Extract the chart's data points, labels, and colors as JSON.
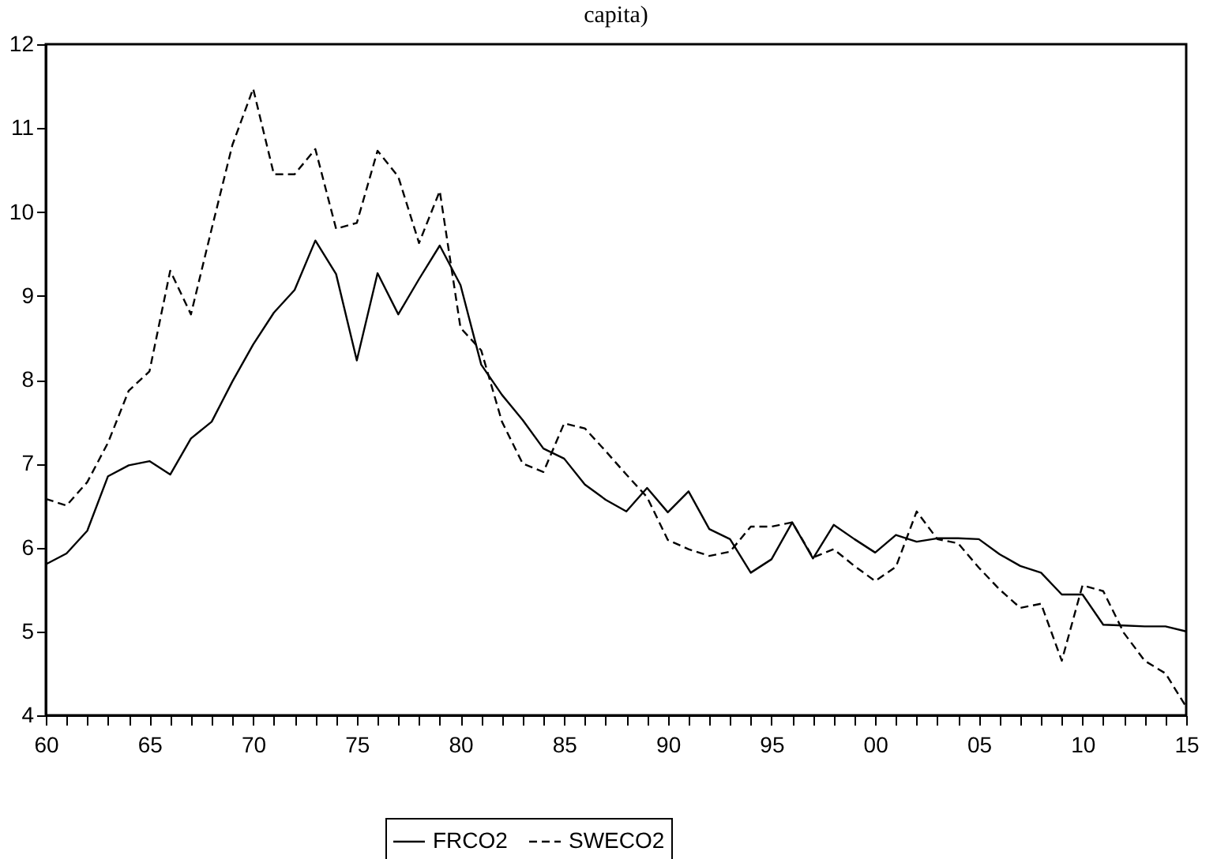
{
  "chart_data": {
    "type": "line",
    "title": "capita)",
    "x": [
      1960,
      1961,
      1962,
      1963,
      1964,
      1965,
      1966,
      1967,
      1968,
      1969,
      1970,
      1971,
      1972,
      1973,
      1974,
      1975,
      1976,
      1977,
      1978,
      1979,
      1980,
      1981,
      1982,
      1983,
      1984,
      1985,
      1986,
      1987,
      1988,
      1989,
      1990,
      1991,
      1992,
      1993,
      1994,
      1995,
      1996,
      1997,
      1998,
      1999,
      2000,
      2001,
      2002,
      2003,
      2004,
      2005,
      2006,
      2007,
      2008,
      2009,
      2010,
      2011,
      2012,
      2013,
      2014,
      2015
    ],
    "series": [
      {
        "name": "FRCO2",
        "color": "#000000",
        "line_style": "solid",
        "values": [
          5.8,
          5.93,
          6.2,
          6.85,
          6.98,
          7.03,
          6.87,
          7.3,
          7.5,
          7.98,
          8.42,
          8.8,
          9.07,
          9.66,
          9.26,
          8.23,
          9.27,
          8.78,
          9.2,
          9.6,
          9.13,
          8.18,
          7.82,
          7.52,
          7.18,
          7.06,
          6.75,
          6.57,
          6.43,
          6.71,
          6.42,
          6.67,
          6.22,
          6.1,
          5.7,
          5.86,
          6.3,
          5.87,
          6.27,
          6.1,
          5.94,
          6.15,
          6.07,
          6.11,
          6.11,
          6.1,
          5.92,
          5.78,
          5.7,
          5.44,
          5.44,
          5.08,
          5.07,
          5.06,
          5.06,
          5.0
        ]
      },
      {
        "name": "SWECO2",
        "color": "#000000",
        "line_style": "dashed",
        "values": [
          6.58,
          6.5,
          6.78,
          7.25,
          7.87,
          8.1,
          9.3,
          8.78,
          9.8,
          10.8,
          11.47,
          10.45,
          10.45,
          10.75,
          9.8,
          9.87,
          10.73,
          10.42,
          9.63,
          10.25,
          8.62,
          8.35,
          7.5,
          7.0,
          6.9,
          7.48,
          7.42,
          7.15,
          6.87,
          6.6,
          6.09,
          5.98,
          5.9,
          5.95,
          6.25,
          6.25,
          6.3,
          5.88,
          5.98,
          5.78,
          5.6,
          5.77,
          6.43,
          6.1,
          6.05,
          5.76,
          5.5,
          5.28,
          5.33,
          4.65,
          5.55,
          5.48,
          4.98,
          4.65,
          4.5,
          4.1
        ]
      }
    ],
    "xlim": [
      1960,
      2015
    ],
    "xticks": [
      {
        "value": 1960,
        "label": "60"
      },
      {
        "value": 1961,
        "label": null
      },
      {
        "value": 1962,
        "label": null
      },
      {
        "value": 1963,
        "label": null
      },
      {
        "value": 1964,
        "label": null
      },
      {
        "value": 1965,
        "label": "65"
      },
      {
        "value": 1966,
        "label": null
      },
      {
        "value": 1967,
        "label": null
      },
      {
        "value": 1968,
        "label": null
      },
      {
        "value": 1969,
        "label": null
      },
      {
        "value": 1970,
        "label": "70"
      },
      {
        "value": 1971,
        "label": null
      },
      {
        "value": 1972,
        "label": null
      },
      {
        "value": 1973,
        "label": null
      },
      {
        "value": 1974,
        "label": null
      },
      {
        "value": 1975,
        "label": "75"
      },
      {
        "value": 1976,
        "label": null
      },
      {
        "value": 1977,
        "label": null
      },
      {
        "value": 1978,
        "label": null
      },
      {
        "value": 1979,
        "label": null
      },
      {
        "value": 1980,
        "label": "80"
      },
      {
        "value": 1981,
        "label": null
      },
      {
        "value": 1982,
        "label": null
      },
      {
        "value": 1983,
        "label": null
      },
      {
        "value": 1984,
        "label": null
      },
      {
        "value": 1985,
        "label": "85"
      },
      {
        "value": 1986,
        "label": null
      },
      {
        "value": 1987,
        "label": null
      },
      {
        "value": 1988,
        "label": null
      },
      {
        "value": 1989,
        "label": null
      },
      {
        "value": 1990,
        "label": "90"
      },
      {
        "value": 1991,
        "label": null
      },
      {
        "value": 1992,
        "label": null
      },
      {
        "value": 1993,
        "label": null
      },
      {
        "value": 1994,
        "label": null
      },
      {
        "value": 1995,
        "label": "95"
      },
      {
        "value": 1996,
        "label": null
      },
      {
        "value": 1997,
        "label": null
      },
      {
        "value": 1998,
        "label": null
      },
      {
        "value": 1999,
        "label": null
      },
      {
        "value": 2000,
        "label": "00"
      },
      {
        "value": 2001,
        "label": null
      },
      {
        "value": 2002,
        "label": null
      },
      {
        "value": 2003,
        "label": null
      },
      {
        "value": 2004,
        "label": null
      },
      {
        "value": 2005,
        "label": "05"
      },
      {
        "value": 2006,
        "label": null
      },
      {
        "value": 2007,
        "label": null
      },
      {
        "value": 2008,
        "label": null
      },
      {
        "value": 2009,
        "label": null
      },
      {
        "value": 2010,
        "label": "10"
      },
      {
        "value": 2011,
        "label": null
      },
      {
        "value": 2012,
        "label": null
      },
      {
        "value": 2013,
        "label": null
      },
      {
        "value": 2014,
        "label": null
      },
      {
        "value": 2015,
        "label": "15"
      }
    ],
    "ylim": [
      4,
      12
    ],
    "yticks": [
      4,
      5,
      6,
      7,
      8,
      9,
      10,
      11,
      12
    ],
    "grid": false,
    "legend": "bottom",
    "marker": "none"
  }
}
